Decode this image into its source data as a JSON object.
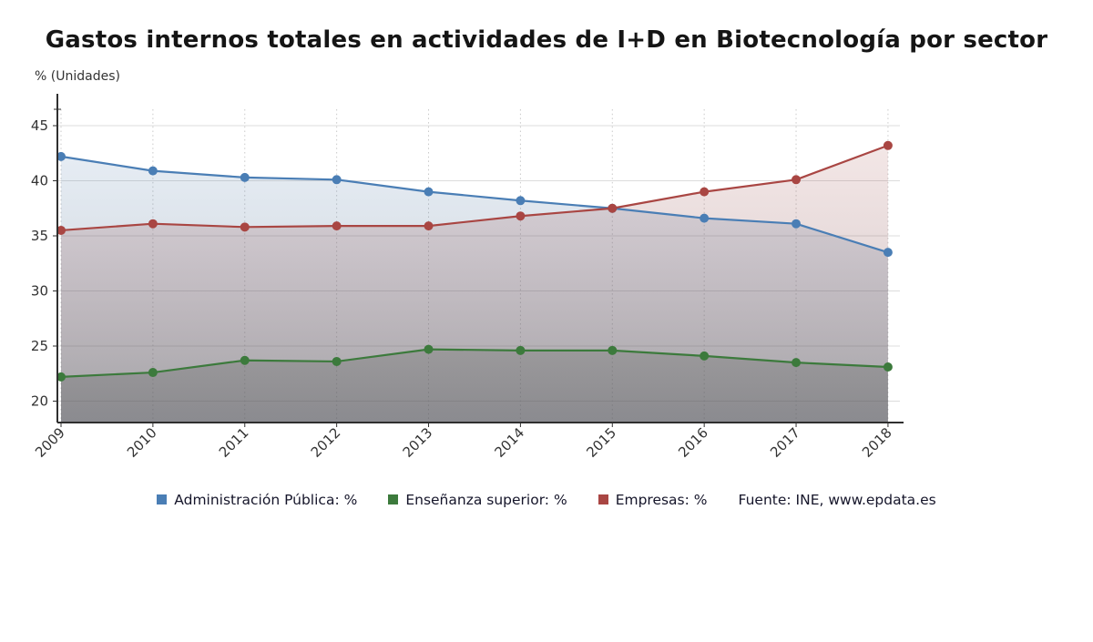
{
  "title": "Gastos internos totales en actividades de I+D en Biotecnología por sector",
  "axis_unit_label": "% (Unidades)",
  "source": "Fuente: INE, www.epdata.es",
  "colors": {
    "blue": "#4a7eb5",
    "green": "#3c7a3c",
    "red": "#a94643",
    "axis": "#2f2f2f",
    "tick_text": "#333333",
    "h_grid": "#dcdcdc",
    "v_grid": "#c9c9c9"
  },
  "chart_data": {
    "type": "line",
    "title": "Gastos internos totales en actividades de I+D en Biotecnología por sector",
    "ylabel": "% (Unidades)",
    "xlabel": "",
    "categories": [
      "2009",
      "2010",
      "2011",
      "2012",
      "2013",
      "2014",
      "2015",
      "2016",
      "2017",
      "2018"
    ],
    "series": [
      {
        "name": "Administración Pública: %",
        "color": "#4a7eb5",
        "values": [
          42.2,
          40.9,
          40.3,
          40.1,
          39.0,
          38.2,
          37.5,
          36.6,
          36.1,
          33.5
        ]
      },
      {
        "name": "Enseñanza superior: %",
        "color": "#3c7a3c",
        "values": [
          22.2,
          22.6,
          23.7,
          23.6,
          24.7,
          24.6,
          24.6,
          24.1,
          23.5,
          23.1
        ]
      },
      {
        "name": "Empresas: %",
        "color": "#a94643",
        "values": [
          35.5,
          36.1,
          35.8,
          35.9,
          35.9,
          36.8,
          37.5,
          39.0,
          40.1,
          43.2
        ]
      }
    ],
    "yticks": [
      20,
      25,
      30,
      35,
      40,
      45
    ],
    "ylim": [
      18.1,
      47.9
    ],
    "grid": true,
    "marker": "circle",
    "area_fill": true,
    "legend_position": "bottom"
  }
}
